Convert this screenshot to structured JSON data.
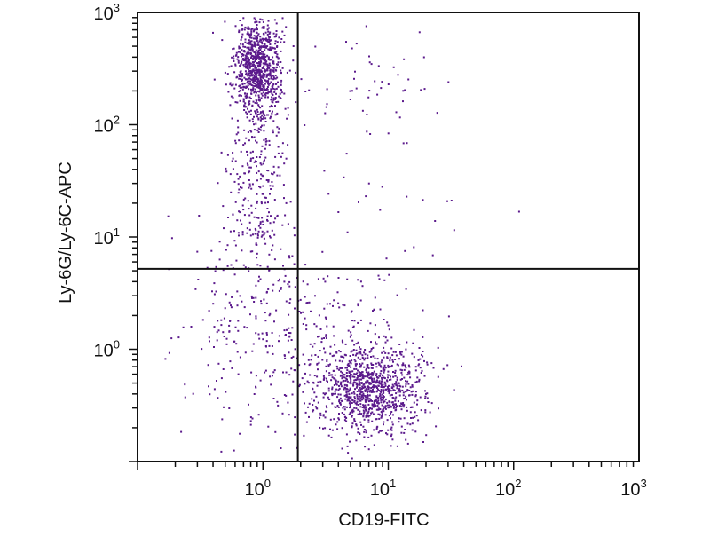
{
  "chart_data": {
    "type": "scatter",
    "xlabel": "CD19-FITC",
    "ylabel": "Ly-6G/Ly-6C-APC",
    "xscale": "log",
    "yscale": "log",
    "xlim": [
      0.1,
      1000
    ],
    "ylim": [
      0.1,
      1000
    ],
    "x_ticks": [
      {
        "base": "10",
        "exp": "0"
      },
      {
        "base": "10",
        "exp": "1"
      },
      {
        "base": "10",
        "exp": "2"
      },
      {
        "base": "10",
        "exp": "3"
      }
    ],
    "y_ticks": [
      {
        "base": "10",
        "exp": "0"
      },
      {
        "base": "10",
        "exp": "1"
      },
      {
        "base": "10",
        "exp": "2"
      },
      {
        "base": "10",
        "exp": "3"
      }
    ],
    "gate": {
      "x": 1.9,
      "y": 5.2
    },
    "point_color": "#5b1a8c",
    "line_color": "#111111",
    "grid": false,
    "populations": [
      {
        "center": [
          0.9,
          320
        ],
        "spread": [
          0.09,
          0.22
        ],
        "count": 900
      },
      {
        "center": [
          0.9,
          40
        ],
        "spread": [
          0.12,
          0.45
        ],
        "count": 260
      },
      {
        "center": [
          0.8,
          2.0
        ],
        "spread": [
          0.28,
          0.55
        ],
        "count": 260
      },
      {
        "center": [
          7.0,
          0.45
        ],
        "spread": [
          0.22,
          0.2
        ],
        "count": 1050
      },
      {
        "center": [
          4.0,
          1.6
        ],
        "spread": [
          0.3,
          0.28
        ],
        "count": 120
      },
      {
        "center": [
          8.0,
          25
        ],
        "spread": [
          0.45,
          0.55
        ],
        "count": 45
      },
      {
        "center": [
          5.0,
          250
        ],
        "spread": [
          0.45,
          0.2
        ],
        "count": 40
      }
    ]
  }
}
